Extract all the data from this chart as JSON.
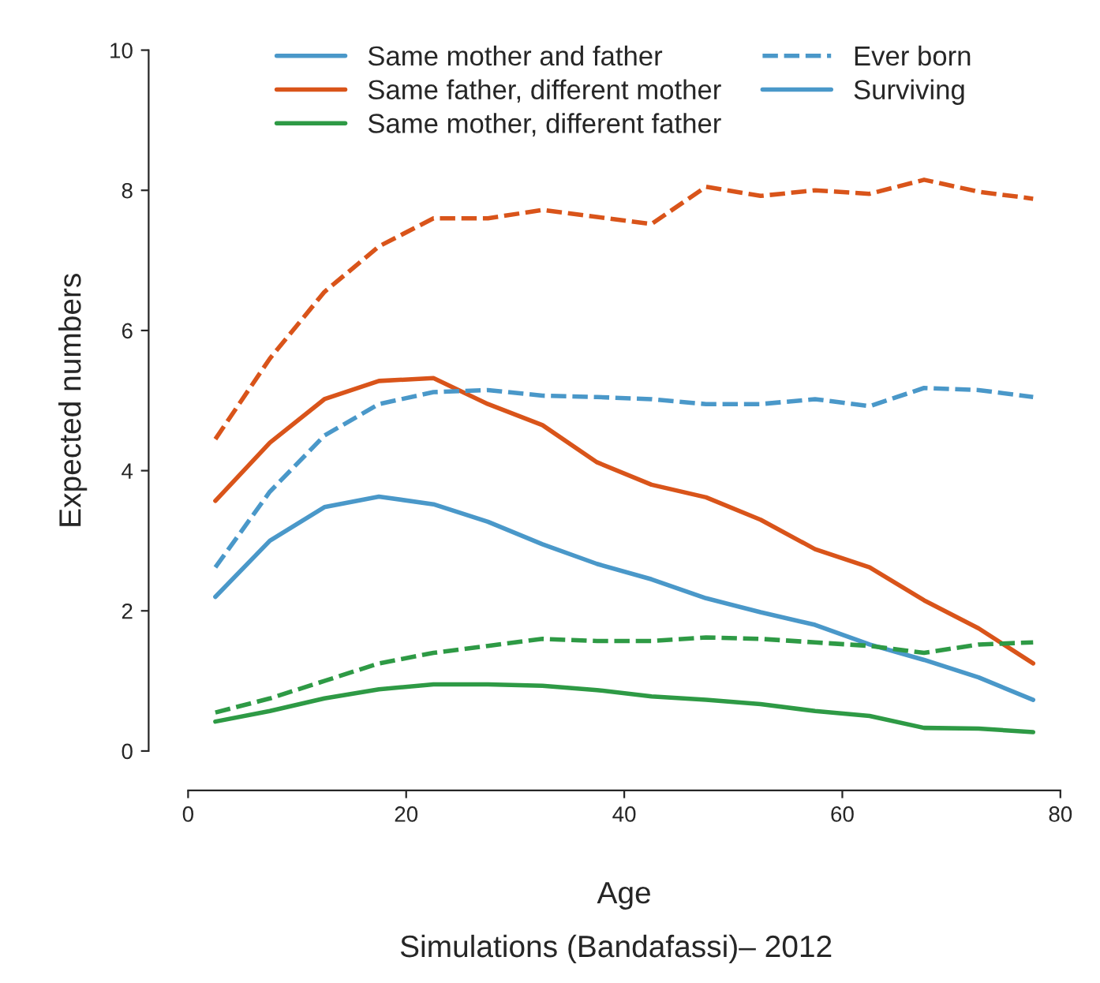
{
  "chart_data": {
    "type": "line",
    "xlabel": "Age",
    "ylabel": "Expected numbers",
    "x": [
      2.5,
      7.5,
      12.5,
      17.5,
      22.5,
      27.5,
      32.5,
      37.5,
      42.5,
      47.5,
      52.5,
      57.5,
      62.5,
      67.5,
      72.5,
      77.5
    ],
    "series": [
      {
        "name": "Same mother and father",
        "color": "#4a98c9",
        "line_style": "solid",
        "values": [
          2.2,
          3.0,
          3.48,
          3.63,
          3.52,
          3.27,
          2.95,
          2.67,
          2.45,
          2.18,
          1.98,
          1.8,
          1.52,
          1.3,
          1.05,
          0.73
        ]
      },
      {
        "name": "Same father, different mother",
        "color": "#d9541a",
        "line_style": "solid",
        "values": [
          3.57,
          4.4,
          5.02,
          5.28,
          5.32,
          4.95,
          4.65,
          4.12,
          3.8,
          3.62,
          3.3,
          2.88,
          2.62,
          2.15,
          1.75,
          1.25
        ]
      },
      {
        "name": "Same mother, different father",
        "color": "#2e9a45",
        "line_style": "solid",
        "values": [
          0.42,
          0.57,
          0.75,
          0.88,
          0.95,
          0.95,
          0.93,
          0.87,
          0.78,
          0.73,
          0.67,
          0.57,
          0.5,
          0.33,
          0.32,
          0.27
        ]
      },
      {
        "color": "#4a98c9",
        "line_style": "dashed",
        "values": [
          2.62,
          3.7,
          4.5,
          4.95,
          5.12,
          5.15,
          5.07,
          5.05,
          5.02,
          4.95,
          4.95,
          5.02,
          4.92,
          5.18,
          5.15,
          5.05
        ]
      },
      {
        "color": "#d9541a",
        "line_style": "dashed",
        "values": [
          4.45,
          5.6,
          6.55,
          7.2,
          7.6,
          7.6,
          7.72,
          7.62,
          7.52,
          8.05,
          7.92,
          8.0,
          7.95,
          8.15,
          7.98,
          7.88
        ]
      },
      {
        "color": "#2e9a45",
        "line_style": "dashed",
        "values": [
          0.55,
          0.75,
          1.0,
          1.25,
          1.4,
          1.5,
          1.6,
          1.57,
          1.57,
          1.62,
          1.6,
          1.55,
          1.5,
          1.4,
          1.52,
          1.55
        ]
      }
    ],
    "annotations": [
      "Ever born",
      "Surviving",
      "Simulations (Bandafassi)– 2012"
    ],
    "xlim": [
      0,
      80
    ],
    "ylim": [
      0,
      10
    ],
    "xticks": [
      0,
      20,
      40,
      60,
      80
    ],
    "yticks": [
      0,
      2,
      4,
      6,
      8,
      10
    ],
    "grid": false,
    "legend": "top"
  }
}
